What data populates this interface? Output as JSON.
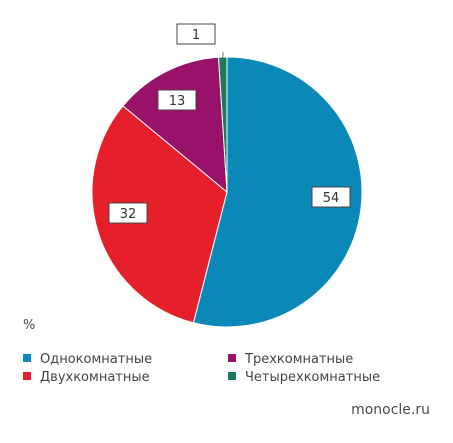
{
  "chart_data": {
    "type": "pie",
    "categories": [
      "Однокомнатные",
      "Двухкомнатные",
      "Трехкомнатные",
      "Четырехкомнатные"
    ],
    "values": [
      54,
      32,
      13,
      1
    ],
    "colors": [
      "#0a89b8",
      "#e5202b",
      "#98116b",
      "#1a7a5a"
    ],
    "data_labels": [
      "54",
      "32",
      "13",
      "1"
    ],
    "start_angle_deg": 0,
    "direction": "clockwise",
    "legend_position": "bottom-left"
  },
  "unit_label": "%",
  "legend": [
    {
      "label": "Однокомнатные",
      "color": "#0a89b8"
    },
    {
      "label": "Трехкомнатные",
      "color": "#98116b"
    },
    {
      "label": "Двухкомнатные",
      "color": "#e5202b"
    },
    {
      "label": "Четырехкомнатные",
      "color": "#1a7a5a"
    }
  ],
  "source": "monocle.ru"
}
